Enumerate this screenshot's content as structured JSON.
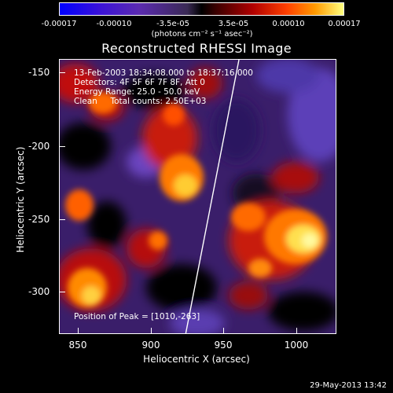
{
  "colorbar": {
    "tick_labels": [
      "-0.00017",
      "-0.00010",
      "-3.5e-05",
      "3.5e-05",
      "0.00010",
      "0.00017"
    ],
    "units": "(photons cm⁻² s⁻¹ asec⁻²)"
  },
  "title": "Reconstructed RHESSI Image",
  "annotations": {
    "time_range": "13-Feb-2003 18:34:08.000 to 18:37:16.000",
    "detectors": "Detectors: 4F 5F 6F 7F 8F, Att 0",
    "energy_range": "Energy Range: 25.0 - 50.0 keV",
    "clean_counts": "Clean     Total counts: 2.50E+03",
    "peak_position": "Position of Peak = [1010,-263]"
  },
  "axes": {
    "x_label": "Heliocentric X (arcsec)",
    "y_label": "Heliocentric Y (arcsec)",
    "x_ticks": [
      "850",
      "900",
      "950",
      "1000"
    ],
    "y_ticks": [
      "-150",
      "-200",
      "-250",
      "-300"
    ]
  },
  "timestamp": "29-May-2013 13:42"
}
